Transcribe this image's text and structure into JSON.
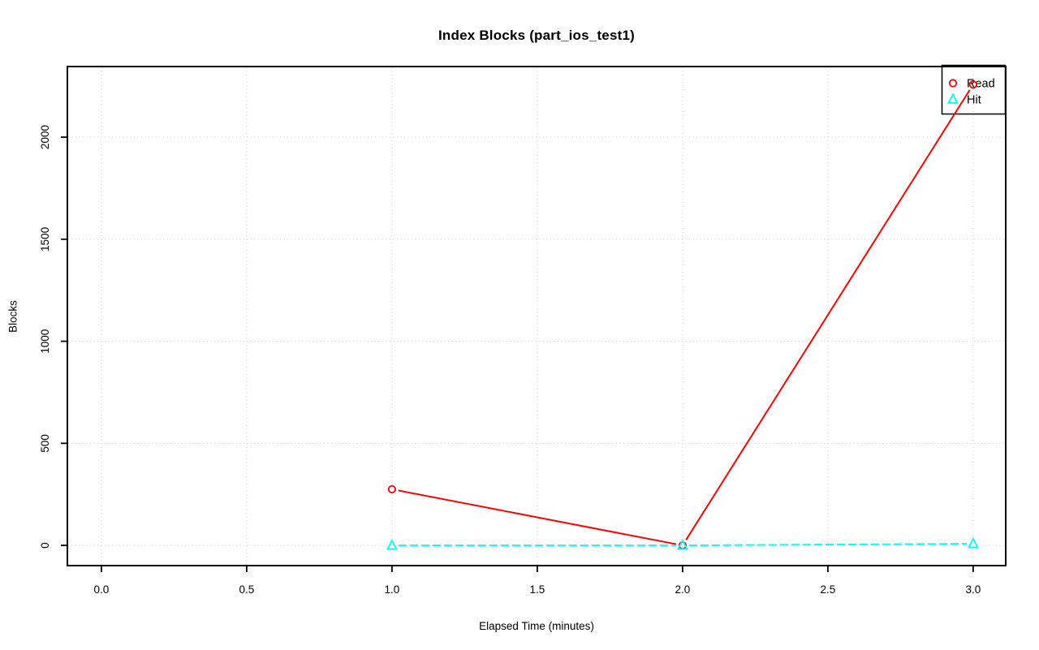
{
  "chart_data": {
    "type": "line",
    "title": "Index Blocks (part_ios_test1)",
    "xlabel": "Elapsed Time (minutes)",
    "ylabel": "Blocks",
    "x": [
      1,
      2,
      3
    ],
    "series": [
      {
        "name": "Read",
        "values": [
          275,
          0,
          2258
        ],
        "color": "#ff0000",
        "marker": "circle",
        "line_style": "solid"
      },
      {
        "name": "Hit",
        "values": [
          0,
          0,
          8
        ],
        "color": "#00ffff",
        "marker": "triangle",
        "line_style": "dashed"
      }
    ],
    "legend": {
      "position": "top-right",
      "entries": [
        "Read",
        "Hit"
      ]
    },
    "x_ticks": {
      "labels": [
        "0.0",
        "0.5",
        "1.0",
        "1.5",
        "2.0",
        "2.5",
        "3.0"
      ],
      "values": [
        0,
        0.5,
        1,
        1.5,
        2,
        2.5,
        3
      ]
    },
    "y_ticks": {
      "labels": [
        "0",
        "500",
        "1000",
        "1500",
        "2000"
      ],
      "values": [
        0,
        500,
        1000,
        1500,
        2000
      ]
    },
    "xlim": [
      -0.117,
      3.112
    ],
    "ylim": [
      -99,
      2346
    ],
    "grid": "dotted",
    "grid_color": "#c8c8c8",
    "axis_color": "#000000",
    "background_color": "#ffffff"
  }
}
